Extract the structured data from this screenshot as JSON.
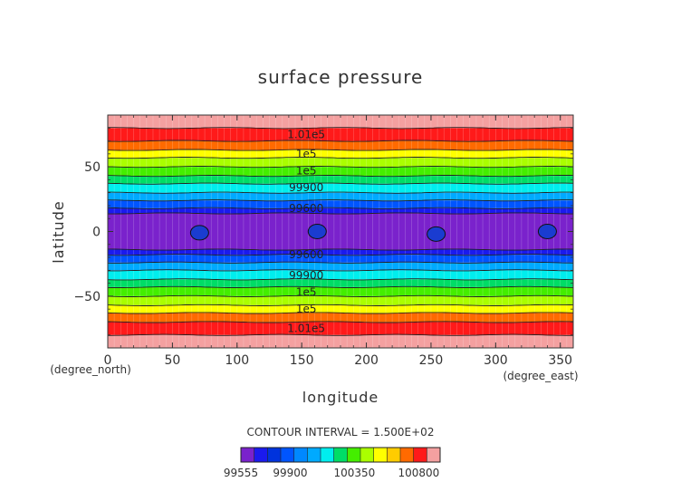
{
  "chart_data": {
    "type": "heatmap",
    "title": "surface pressure",
    "xlabel": "longitude",
    "ylabel": "latitude",
    "x_unit": "(degree_east)",
    "y_unit": "(degree_north)",
    "xlim": [
      0,
      360
    ],
    "ylim": [
      -90,
      90
    ],
    "x_ticks": [
      0,
      50,
      100,
      150,
      200,
      250,
      300,
      350
    ],
    "y_ticks": [
      -50,
      0,
      50
    ],
    "contour_interval_text": "CONTOUR INTERVAL = 1.500E+02",
    "bands": [
      {
        "lat": [
          -90,
          -80
        ],
        "color": "#f4a0a0"
      },
      {
        "lat": [
          -80,
          -70
        ],
        "color": "#ff1a1a"
      },
      {
        "lat": [
          -70,
          -63
        ],
        "color": "#ff6a00"
      },
      {
        "lat": [
          -63,
          -57
        ],
        "color": "#ffff00"
      },
      {
        "lat": [
          -57,
          -50
        ],
        "color": "#aaff00"
      },
      {
        "lat": [
          -50,
          -43
        ],
        "color": "#44ee00"
      },
      {
        "lat": [
          -43,
          -37
        ],
        "color": "#00dd66"
      },
      {
        "lat": [
          -37,
          -30
        ],
        "color": "#00eeee"
      },
      {
        "lat": [
          -30,
          -24
        ],
        "color": "#00aaff"
      },
      {
        "lat": [
          -24,
          -18
        ],
        "color": "#0055ff"
      },
      {
        "lat": [
          -18,
          -14
        ],
        "color": "#1a1aee"
      },
      {
        "lat": [
          -14,
          14
        ],
        "color": "#7a22cc"
      },
      {
        "lat": [
          14,
          18
        ],
        "color": "#1a1aee"
      },
      {
        "lat": [
          18,
          24
        ],
        "color": "#0055ff"
      },
      {
        "lat": [
          24,
          30
        ],
        "color": "#00aaff"
      },
      {
        "lat": [
          30,
          37
        ],
        "color": "#00eeee"
      },
      {
        "lat": [
          37,
          43
        ],
        "color": "#00dd66"
      },
      {
        "lat": [
          43,
          50
        ],
        "color": "#44ee00"
      },
      {
        "lat": [
          50,
          57
        ],
        "color": "#aaff00"
      },
      {
        "lat": [
          57,
          63
        ],
        "color": "#ffff00"
      },
      {
        "lat": [
          63,
          70
        ],
        "color": "#ff6a00"
      },
      {
        "lat": [
          70,
          80
        ],
        "color": "#ff1a1a"
      },
      {
        "lat": [
          80,
          90
        ],
        "color": "#f4a0a0"
      }
    ],
    "contour_labels": [
      {
        "text": "1.01e5",
        "lon": 150,
        "lat": 75
      },
      {
        "text": "1e5",
        "lon": 150,
        "lat": 60
      },
      {
        "text": "1e5",
        "lon": 150,
        "lat": 47
      },
      {
        "text": "99900",
        "lon": 150,
        "lat": 34
      },
      {
        "text": "99600",
        "lon": 150,
        "lat": 18
      },
      {
        "text": "99600",
        "lon": 150,
        "lat": -18
      },
      {
        "text": "99900",
        "lon": 150,
        "lat": -34
      },
      {
        "text": "1e5",
        "lon": 150,
        "lat": -47
      },
      {
        "text": "1e5",
        "lon": 150,
        "lat": -60
      },
      {
        "text": "1.01e5",
        "lon": 150,
        "lat": -75
      }
    ],
    "lows": [
      {
        "lon": 71,
        "lat": -1
      },
      {
        "lon": 162,
        "lat": 0
      },
      {
        "lon": 254,
        "lat": -2
      },
      {
        "lon": 340,
        "lat": 0
      }
    ],
    "low_color": "#1a3cd0",
    "colorbar": {
      "colors": [
        "#7a22cc",
        "#1a1aee",
        "#0033dd",
        "#0055ff",
        "#0088ff",
        "#00aaff",
        "#00eeee",
        "#00dd66",
        "#44ee00",
        "#aaff00",
        "#ffff00",
        "#ffcc00",
        "#ff6a00",
        "#ff1a1a",
        "#f4a0a0"
      ],
      "labels": [
        {
          "text": "99555",
          "value": 99555
        },
        {
          "text": "99900",
          "value": 99900
        },
        {
          "text": "100350",
          "value": 100350
        },
        {
          "text": "100800",
          "value": 100800
        }
      ],
      "min": 99555,
      "max": 100950
    }
  }
}
